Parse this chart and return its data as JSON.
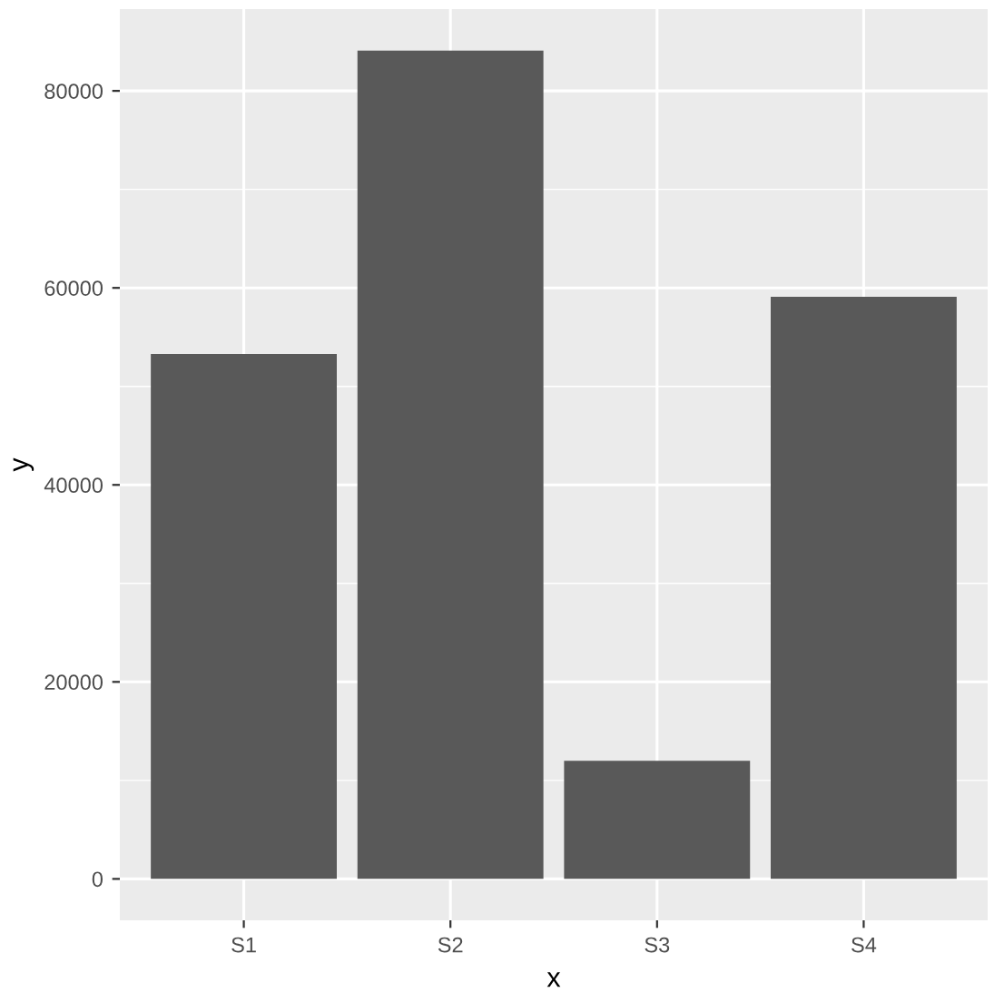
{
  "chart_data": {
    "type": "bar",
    "xlabel": "x",
    "ylabel": "y",
    "categories": [
      "S1",
      "S2",
      "S3",
      "S4"
    ],
    "values": [
      53300,
      84100,
      12000,
      59100
    ],
    "color": "#595959",
    "ylim": [
      -4205,
      88305
    ],
    "yticks": [
      0,
      20000,
      40000,
      60000,
      80000
    ],
    "grid": true
  }
}
